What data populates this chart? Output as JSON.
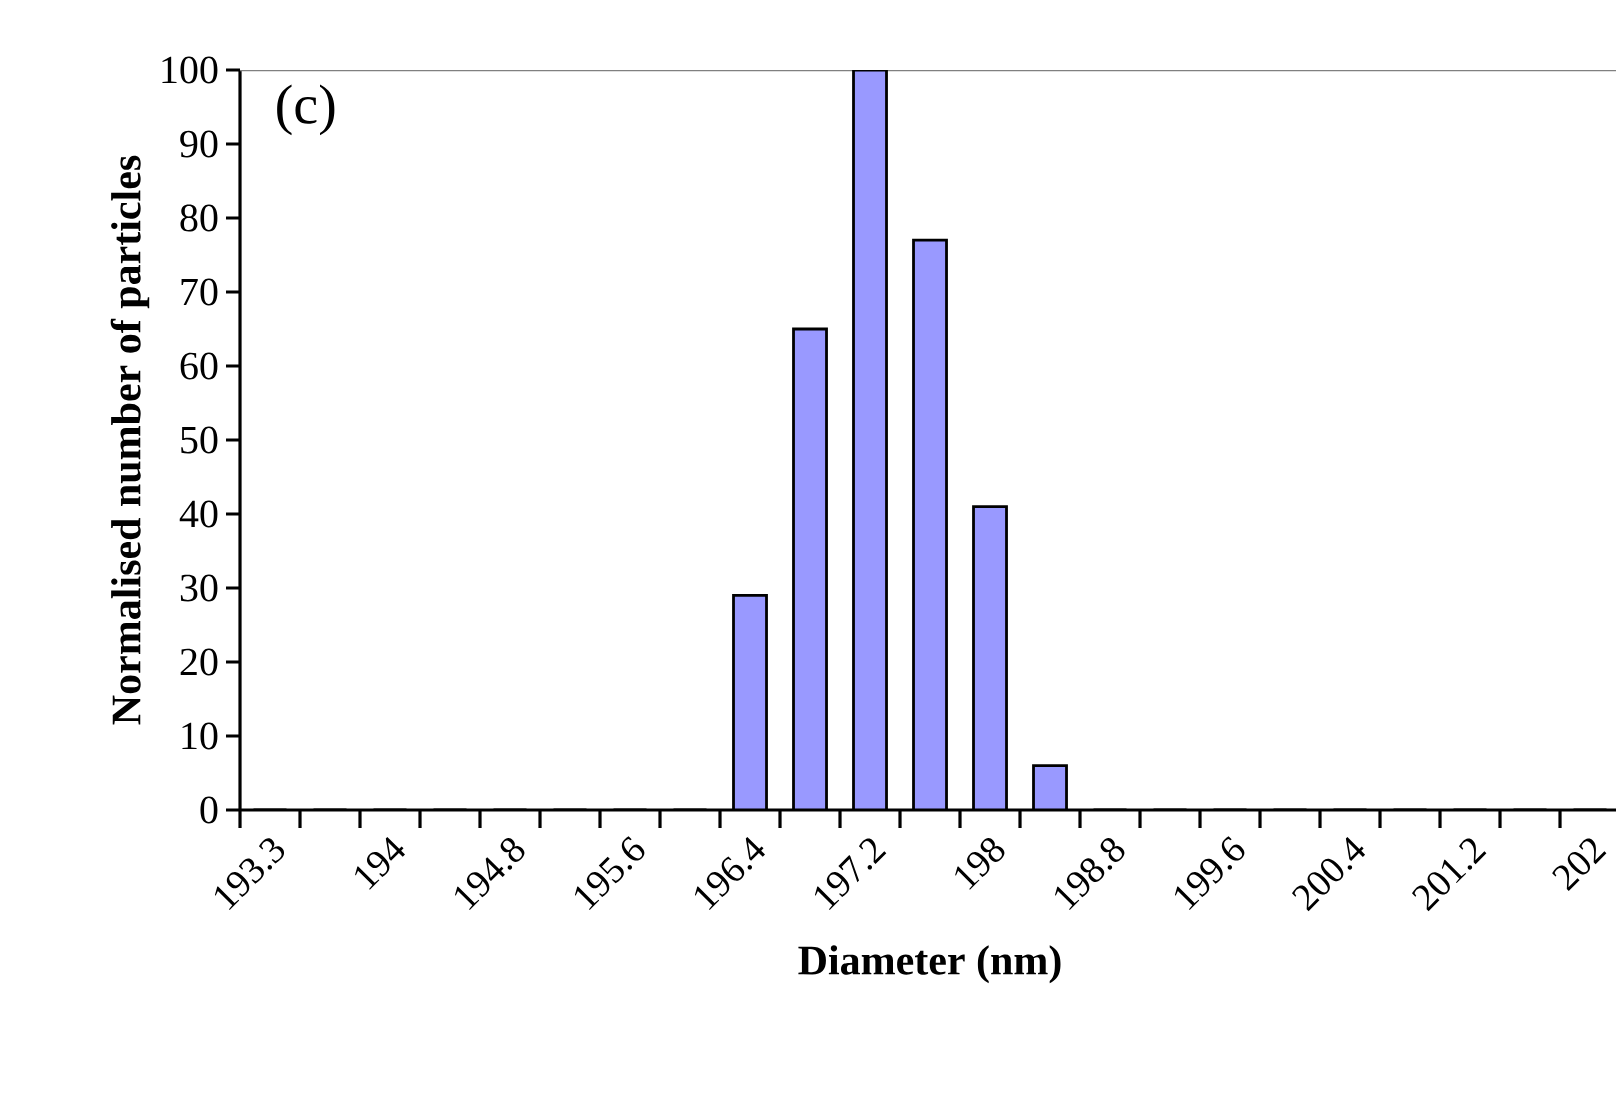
{
  "chart_data": {
    "type": "bar",
    "xlabel": "Diameter (nm)",
    "ylabel": "Normalised number of particles",
    "annotations": [
      "(c)"
    ],
    "categories": [
      "193.3",
      null,
      "194",
      null,
      "194.8",
      null,
      "195.6",
      null,
      "196.4",
      null,
      "197.2",
      null,
      "198",
      null,
      "198.8",
      null,
      "199.6",
      null,
      "200.4",
      null,
      "201.2",
      null,
      "202"
    ],
    "values": [
      0,
      0,
      0,
      0,
      0,
      0,
      0,
      0,
      29,
      65,
      100,
      77,
      41,
      6,
      0,
      0,
      0,
      0,
      0,
      0,
      0,
      0,
      0
    ],
    "color": "#9999ff",
    "ylim": [
      0,
      100
    ],
    "yticks": [
      0,
      10,
      20,
      30,
      40,
      50,
      60,
      70,
      80,
      90,
      100
    ]
  }
}
